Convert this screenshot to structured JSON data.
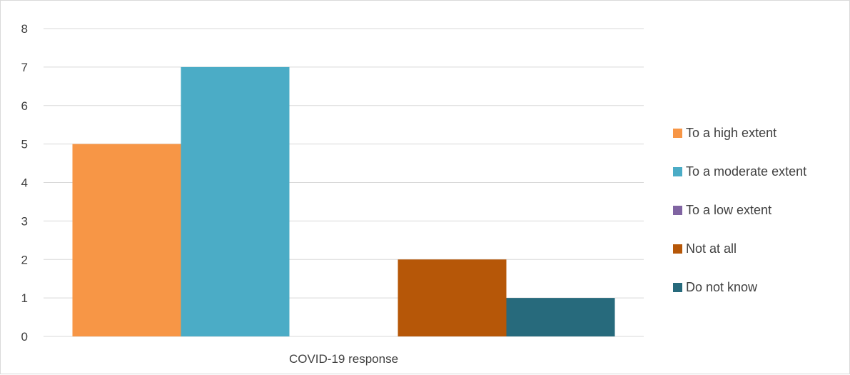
{
  "chart_data": {
    "type": "bar",
    "categories": [
      "COVID-19 response"
    ],
    "series": [
      {
        "name": "To a high extent",
        "values": [
          5
        ],
        "color": "#F79646"
      },
      {
        "name": "To a moderate extent",
        "values": [
          7
        ],
        "color": "#4BACC6"
      },
      {
        "name": "To a low extent",
        "values": [
          0
        ],
        "color": "#8064A2"
      },
      {
        "name": "Not at all",
        "values": [
          2
        ],
        "color": "#B65708"
      },
      {
        "name": "Do not know",
        "values": [
          1
        ],
        "color": "#276A7C"
      }
    ],
    "y_ticks": [
      "0",
      "1",
      "2",
      "3",
      "4",
      "5",
      "6",
      "7",
      "8"
    ],
    "ylim": [
      0,
      8
    ],
    "grid": true,
    "legend_position": "right"
  }
}
